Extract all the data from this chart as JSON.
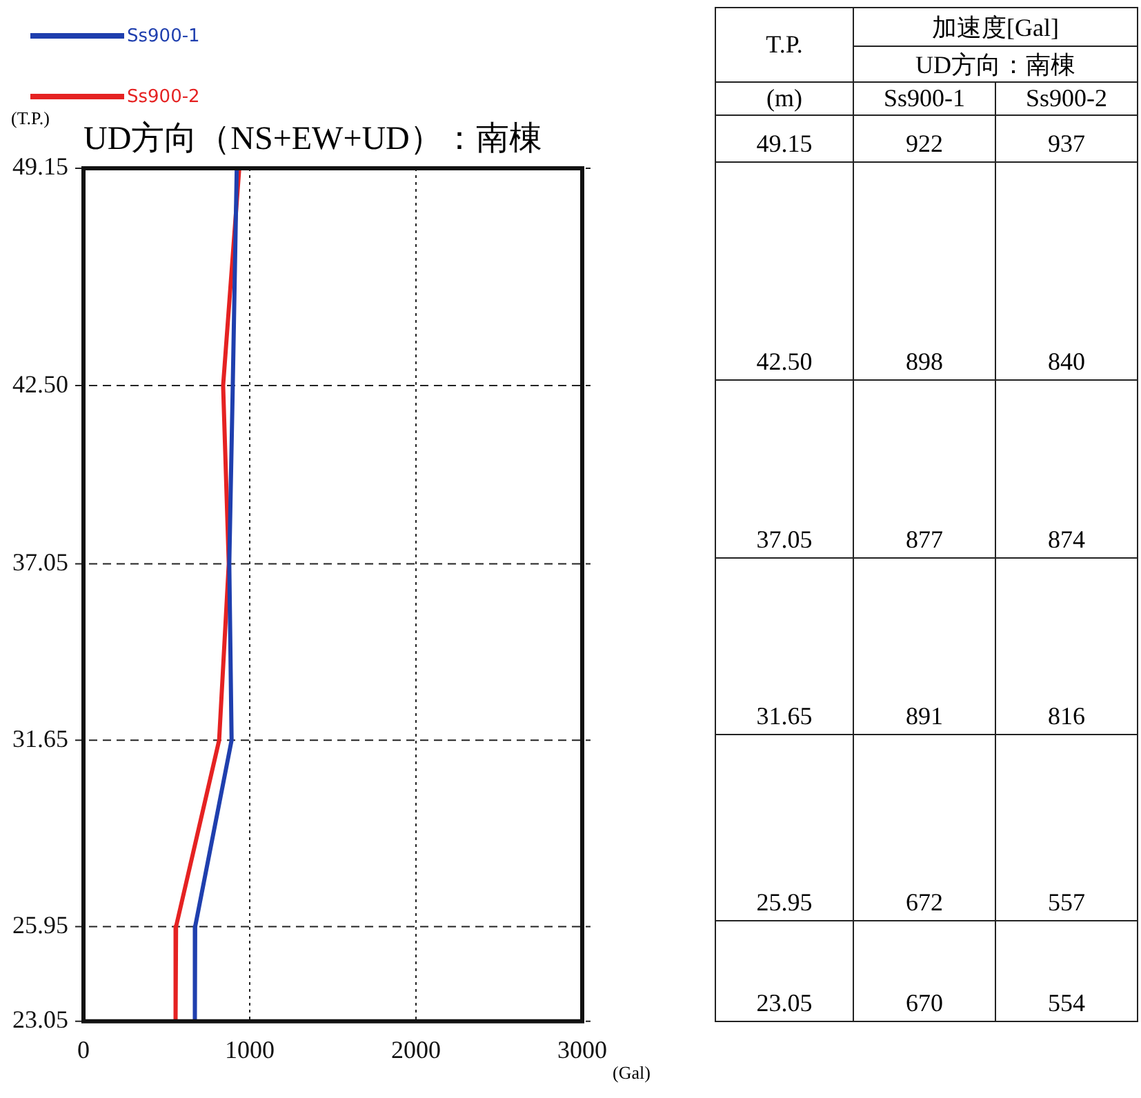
{
  "chart_data": [
    {
      "type": "line",
      "orientation": "horizontal",
      "title": "UD方向（NS+EW+UD）：南棟",
      "xlabel": "(Gal)",
      "ylabel": "(T.P.)",
      "xlim": [
        0,
        3000
      ],
      "xticks": [
        0,
        1000,
        2000,
        3000
      ],
      "ylim": [
        23.05,
        49.15
      ],
      "yticks": [
        {
          "value": 49.15,
          "label": "49.15"
        },
        {
          "value": 42.5,
          "label": "42.50"
        },
        {
          "value": 37.05,
          "label": "37.05"
        },
        {
          "value": 31.65,
          "label": "31.65"
        },
        {
          "value": 25.95,
          "label": "25.95"
        },
        {
          "value": 23.05,
          "label": "23.05"
        }
      ],
      "grid": true,
      "legend": "top left",
      "series": [
        {
          "name": "Ss900-1",
          "color": "#1f3fae",
          "x": [
            49.15,
            42.5,
            37.05,
            31.65,
            25.95,
            23.05
          ],
          "values": [
            922,
            898,
            877,
            891,
            672,
            670
          ]
        },
        {
          "name": "Ss900-2",
          "color": "#e52222",
          "x": [
            49.15,
            42.5,
            37.05,
            31.65,
            25.95,
            23.05
          ],
          "values": [
            937,
            840,
            874,
            816,
            557,
            554
          ]
        }
      ]
    },
    {
      "type": "other",
      "annotations": [
        "T.P.",
        "加速度[Gal]",
        "UD方向：南棟",
        "(m)",
        "Ss900-1",
        "Ss900-2",
        "49.15",
        "922",
        "937",
        "42.50",
        "898",
        "840",
        "37.05",
        "877",
        "874",
        "31.65",
        "891",
        "816",
        "25.95",
        "672",
        "557",
        "23.05",
        "670",
        "554"
      ]
    }
  ]
}
